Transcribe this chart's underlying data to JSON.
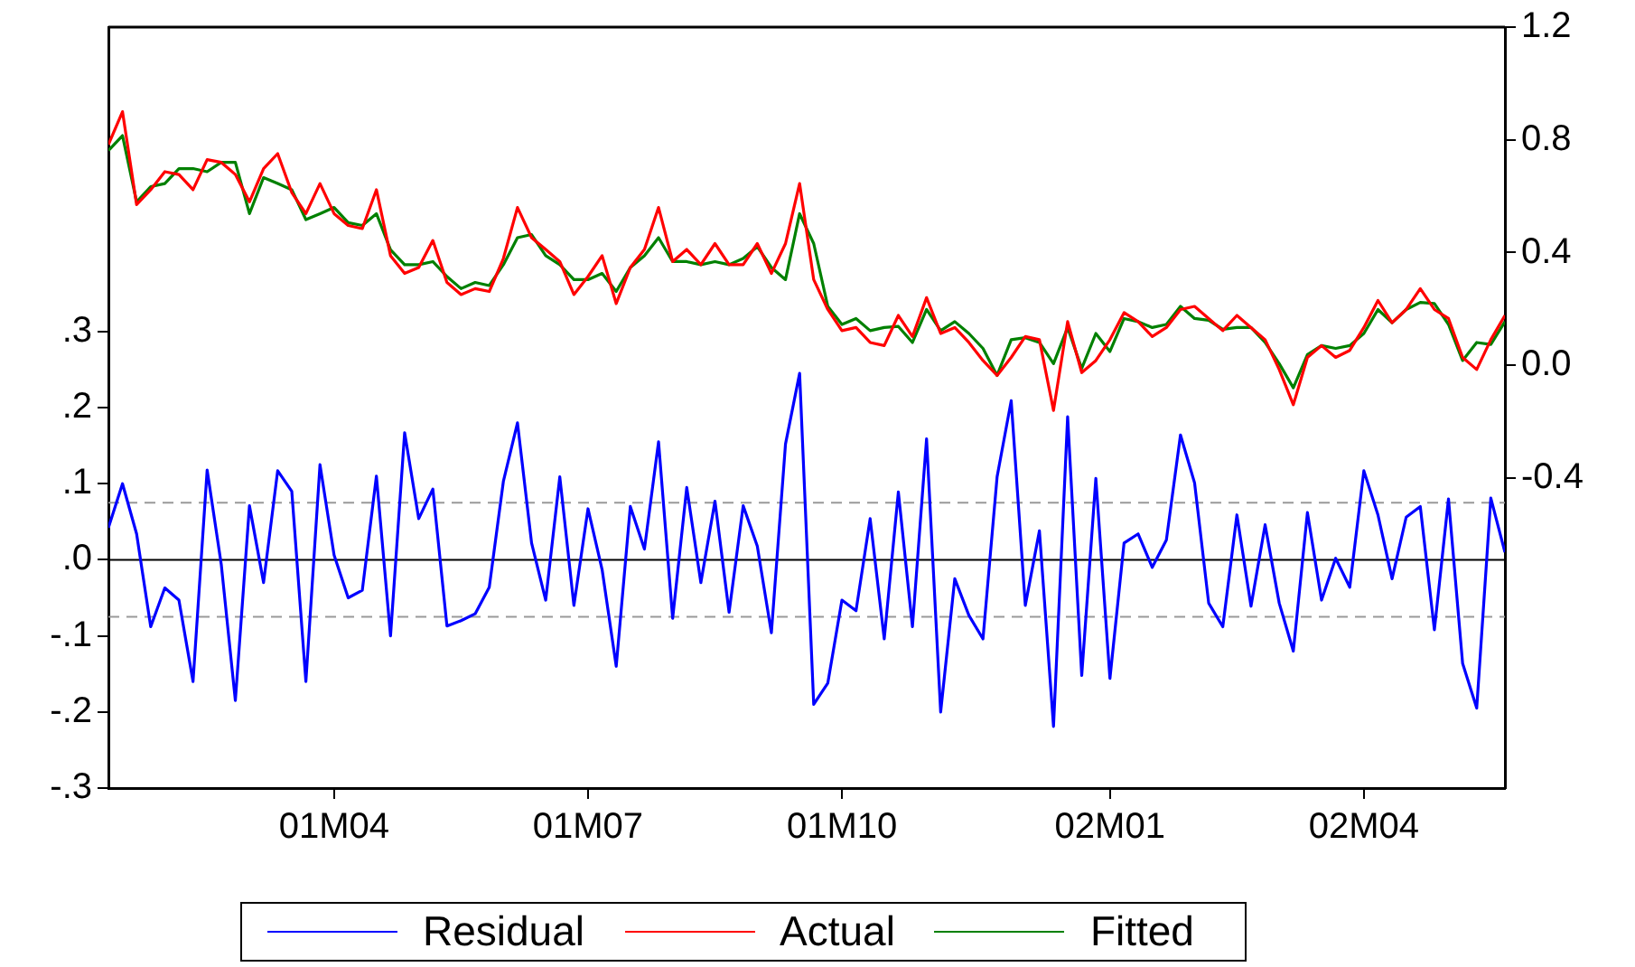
{
  "chart_data": {
    "type": "line",
    "grid": false,
    "legend": "bottom",
    "categories": [
      null,
      null,
      null,
      null,
      null,
      null,
      null,
      null,
      null,
      null,
      null,
      null,
      null,
      null,
      null,
      null,
      "01M04",
      null,
      null,
      null,
      null,
      null,
      null,
      null,
      null,
      null,
      null,
      null,
      null,
      null,
      null,
      null,
      null,
      null,
      "01M07",
      null,
      null,
      null,
      null,
      null,
      null,
      null,
      null,
      null,
      null,
      null,
      null,
      null,
      null,
      null,
      null,
      null,
      "01M10",
      null,
      null,
      null,
      null,
      null,
      null,
      null,
      null,
      null,
      null,
      null,
      null,
      null,
      null,
      null,
      null,
      null,
      null,
      "02M01",
      null,
      null,
      null,
      null,
      null,
      null,
      null,
      null,
      null,
      null,
      null,
      null,
      null,
      null,
      null,
      null,
      null,
      "02M04",
      null,
      null,
      null,
      null,
      null,
      null,
      null,
      null,
      null,
      null
    ],
    "series": [
      {
        "name": "Residual",
        "color": "#0000ff",
        "values": [
          0.042,
          0.1,
          0.034,
          -0.088,
          -0.037,
          -0.053,
          -0.16,
          0.118,
          -0.006,
          -0.185,
          0.071,
          -0.03,
          0.117,
          0.09,
          -0.16,
          0.125,
          0.006,
          -0.05,
          -0.04,
          0.11,
          -0.1,
          0.167,
          0.054,
          0.093,
          -0.087,
          -0.08,
          -0.071,
          -0.036,
          0.103,
          0.18,
          0.022,
          -0.053,
          0.109,
          -0.06,
          0.067,
          -0.013,
          -0.14,
          0.07,
          0.014,
          0.155,
          -0.077,
          0.095,
          -0.03,
          0.077,
          -0.069,
          0.071,
          0.018,
          -0.096,
          0.152,
          0.245,
          -0.19,
          -0.162,
          -0.053,
          -0.067,
          0.054,
          -0.104,
          0.089,
          -0.088,
          0.159,
          -0.2,
          -0.025,
          -0.073,
          -0.104,
          0.109,
          0.209,
          -0.06,
          0.038,
          -0.219,
          0.188,
          -0.152,
          0.107,
          -0.156,
          0.022,
          0.034,
          -0.01,
          0.026,
          0.164,
          0.101,
          -0.057,
          -0.088,
          0.059,
          -0.061,
          0.046,
          -0.057,
          -0.12,
          0.062,
          -0.053,
          0.002,
          -0.036,
          0.117,
          0.059,
          -0.025,
          0.056,
          0.07,
          -0.092,
          0.08,
          -0.136,
          -0.195,
          0.081,
          0.01
        ]
      },
      {
        "name": "Actual",
        "color": "#ff0000",
        "axis": "y2",
        "values": [
          0.783,
          0.9,
          0.57,
          0.623,
          0.687,
          0.677,
          0.623,
          0.73,
          0.72,
          0.677,
          0.58,
          0.698,
          0.751,
          0.613,
          0.538,
          0.645,
          0.538,
          0.496,
          0.485,
          0.623,
          0.389,
          0.326,
          0.347,
          0.443,
          0.294,
          0.251,
          0.272,
          0.262,
          0.379,
          0.56,
          0.453,
          0.411,
          0.368,
          0.251,
          0.315,
          0.389,
          0.219,
          0.347,
          0.411,
          0.56,
          0.368,
          0.411,
          0.357,
          0.432,
          0.357,
          0.357,
          0.432,
          0.326,
          0.432,
          0.645,
          0.304,
          0.198,
          0.123,
          0.134,
          0.081,
          0.07,
          0.177,
          0.102,
          0.24,
          0.113,
          0.134,
          0.081,
          0.017,
          -0.036,
          0.028,
          0.102,
          0.091,
          -0.16,
          0.155,
          -0.026,
          0.017,
          0.091,
          0.187,
          0.155,
          0.102,
          0.134,
          0.198,
          0.209,
          0.166,
          0.123,
          0.177,
          0.134,
          0.091,
          -0.015,
          -0.14,
          0.028,
          0.07,
          0.028,
          0.053,
          0.134,
          0.23,
          0.151,
          0.198,
          0.272,
          0.198,
          0.166,
          0.028,
          -0.015,
          0.091,
          0.177
        ]
      },
      {
        "name": "Fitted",
        "color": "#008000",
        "axis": "y2",
        "values": [
          0.762,
          0.815,
          0.58,
          0.634,
          0.645,
          0.698,
          0.698,
          0.687,
          0.72,
          0.72,
          0.538,
          0.666,
          0.645,
          0.623,
          0.517,
          0.538,
          0.56,
          0.506,
          0.496,
          0.538,
          0.41,
          0.357,
          0.357,
          0.368,
          0.315,
          0.272,
          0.294,
          0.283,
          0.357,
          0.453,
          0.464,
          0.389,
          0.357,
          0.304,
          0.304,
          0.326,
          0.262,
          0.347,
          0.389,
          0.453,
          0.368,
          0.368,
          0.357,
          0.368,
          0.357,
          0.379,
          0.421,
          0.347,
          0.304,
          0.538,
          0.432,
          0.209,
          0.145,
          0.166,
          0.123,
          0.134,
          0.138,
          0.081,
          0.198,
          0.123,
          0.155,
          0.113,
          0.06,
          -0.036,
          0.091,
          0.098,
          0.081,
          0.006,
          0.134,
          -0.011,
          0.113,
          0.049,
          0.166,
          0.155,
          0.134,
          0.145,
          0.209,
          0.166,
          0.16,
          0.128,
          0.134,
          0.134,
          0.081,
          0.006,
          -0.08,
          0.038,
          0.07,
          0.06,
          0.07,
          0.113,
          0.198,
          0.151,
          0.198,
          0.223,
          0.219,
          0.145,
          0.017,
          0.081,
          0.074,
          0.155
        ]
      }
    ],
    "ylim": [
      -0.3,
      0.7
    ],
    "yticks": [
      {
        "value": 0.3,
        "label": ".3"
      },
      {
        "value": 0.2,
        "label": ".2"
      },
      {
        "value": 0.1,
        "label": ".1"
      },
      {
        "value": 0,
        "label": ".0"
      },
      {
        "value": -0.1,
        "label": "-.1"
      },
      {
        "value": -0.2,
        "label": "-.2"
      },
      {
        "value": -0.3,
        "label": "-.3"
      }
    ],
    "y2lim": [
      -1.5,
      1.2
    ],
    "y2ticks": [
      {
        "value": -0.4,
        "label": "-0.4"
      },
      {
        "value": 0,
        "label": "0.0"
      },
      {
        "value": 0.4,
        "label": "0.4"
      },
      {
        "value": 0.8,
        "label": "0.8"
      },
      {
        "value": 1.2,
        "label": "1.2"
      }
    ],
    "ref_lines": [
      {
        "axis": "y",
        "value": 0,
        "color": "#000000",
        "line_style": "solid"
      },
      {
        "axis": "y",
        "value": 0.075,
        "color": "#999999",
        "line_style": "dashed"
      },
      {
        "axis": "y",
        "value": -0.075,
        "color": "#999999",
        "line_style": "dashed"
      }
    ]
  }
}
